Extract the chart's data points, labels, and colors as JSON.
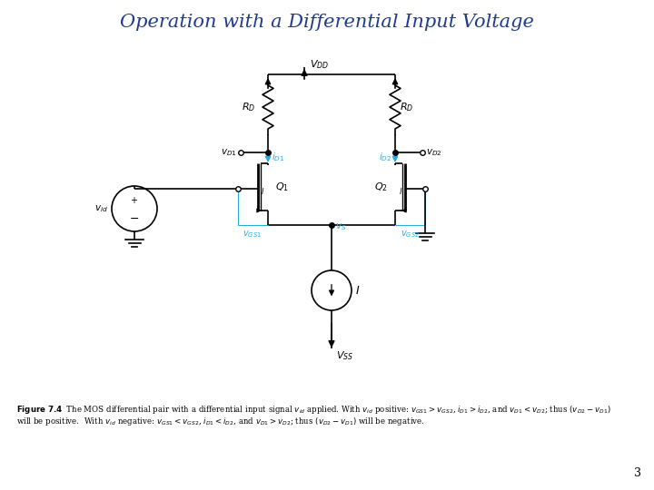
{
  "title": "Operation with a Differential Input Voltage",
  "title_color": "#1F3A8F",
  "title_fontsize": 15,
  "background_color": "#ffffff",
  "line_color": "#000000",
  "blue_color": "#29ABE2",
  "page_number": "3",
  "fig_w": 7.2,
  "fig_h": 5.4,
  "dpi": 100
}
